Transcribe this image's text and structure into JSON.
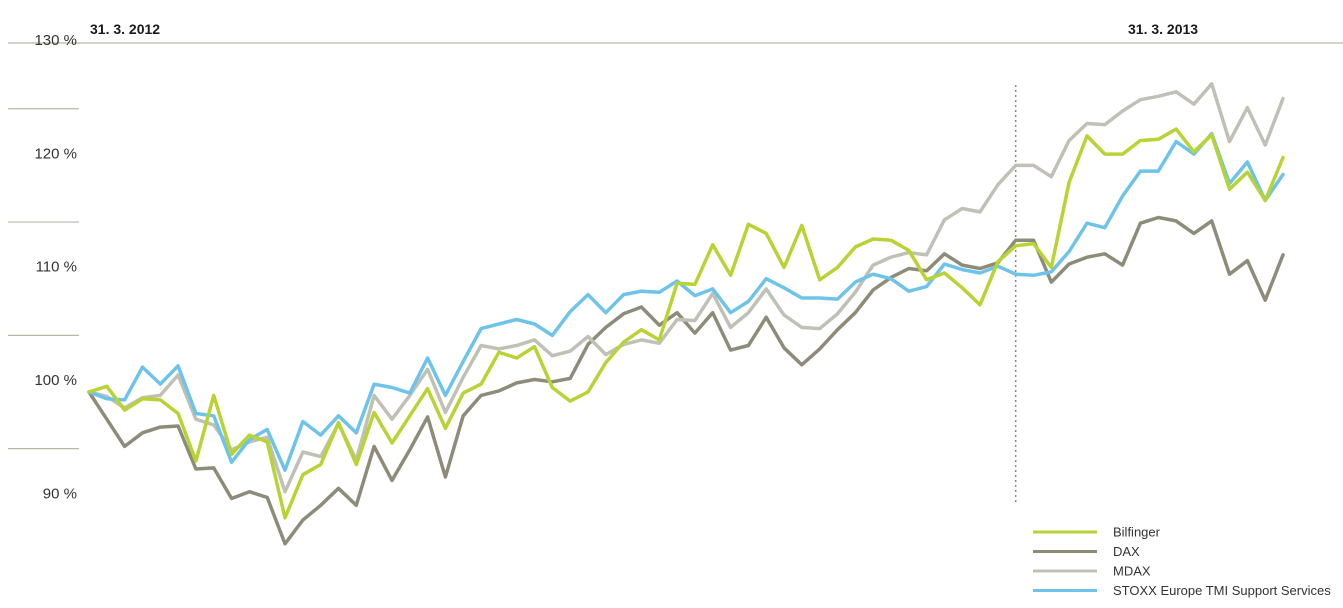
{
  "chart_data": {
    "type": "line",
    "start_label": "31. 3. 2012",
    "end_label": "31. 3. 2013",
    "yticks": [
      "130 %",
      "120 %",
      "110 %",
      "100 %",
      "90 %"
    ],
    "ytick_values": [
      130,
      120,
      110,
      100,
      90
    ],
    "ylim": [
      88,
      132
    ],
    "grid": "short horizontal lines at half-steps between tick labels",
    "marker_index": 52,
    "legend_position": "bottom-right",
    "series": [
      {
        "name": "Bilfinger",
        "color": "#b7d334",
        "values": [
          100,
          100.5,
          98.4,
          99.4,
          99.3,
          98.1,
          93.9,
          99.7,
          94.5,
          96.2,
          95.6,
          88.9,
          92.7,
          93.6,
          97.3,
          93.6,
          98.2,
          95.5,
          97.9,
          100.3,
          96.8,
          99.9,
          100.7,
          103.5,
          103,
          104,
          100.4,
          99.2,
          100,
          102.6,
          104.4,
          105.5,
          104.6,
          109.6,
          109.5,
          113,
          110.3,
          114.8,
          114,
          111,
          114.7,
          109.9,
          111,
          112.8,
          113.5,
          113.4,
          112.5,
          109.9,
          110.5,
          109.2,
          107.7,
          111.5,
          112.9,
          113.1,
          111,
          118.5,
          122.6,
          121,
          121,
          122.2,
          122.3,
          123.2,
          121.2,
          122.7,
          117.9,
          119.4,
          116.9,
          120.7
        ]
      },
      {
        "name": "DAX",
        "color": "#8e8c79",
        "values": [
          100,
          97.6,
          95.2,
          96.4,
          96.9,
          97,
          93.2,
          93.3,
          90.6,
          91.2,
          90.7,
          86.6,
          88.7,
          90,
          91.5,
          90,
          95.2,
          92.2,
          94.9,
          97.8,
          92.5,
          97.9,
          99.7,
          100.1,
          100.8,
          101.1,
          100.9,
          101.2,
          104.2,
          105.7,
          106.9,
          107.5,
          105.9,
          107,
          105.2,
          107,
          103.7,
          104.1,
          106.6,
          103.9,
          102.4,
          103.8,
          105.5,
          107,
          109,
          110.1,
          110.9,
          110.7,
          112.2,
          111.2,
          110.9,
          111.4,
          113.4,
          113.4,
          109.7,
          111.3,
          111.9,
          112.2,
          111.2,
          114.9,
          115.4,
          115.1,
          114,
          115.1,
          110.4,
          111.6,
          108.1,
          112.1
        ]
      },
      {
        "name": "MDAX",
        "color": "#c1c0b6",
        "values": [
          100,
          99.6,
          98.6,
          99.5,
          99.7,
          101.5,
          97.6,
          97.1,
          94.9,
          95.6,
          96,
          91.2,
          94.7,
          94.3,
          97.2,
          94,
          99.7,
          97.6,
          99.7,
          102,
          98.2,
          101.3,
          104.1,
          103.8,
          104.1,
          104.6,
          103.2,
          103.6,
          104.9,
          103.3,
          104.2,
          104.6,
          104.3,
          106.4,
          106.3,
          108.7,
          105.7,
          107,
          109.1,
          106.8,
          105.7,
          105.6,
          106.9,
          108.8,
          111.2,
          111.9,
          112.3,
          112.1,
          115.2,
          116.2,
          115.9,
          118.3,
          120,
          120,
          119,
          122.2,
          123.7,
          123.6,
          124.8,
          125.8,
          126.1,
          126.5,
          125.4,
          127.2,
          122.1,
          125.1,
          121.8,
          125.9
        ]
      },
      {
        "name": "STOXX Europe TMI Support Services",
        "color": "#6ec4e8",
        "values": [
          100,
          99.4,
          99.3,
          102.2,
          100.7,
          102.3,
          98.1,
          97.9,
          93.8,
          95.8,
          96.7,
          93.1,
          97.4,
          96.2,
          97.9,
          96.4,
          100.7,
          100.4,
          99.9,
          103,
          99.7,
          102.7,
          105.6,
          106,
          106.4,
          106,
          105,
          107.1,
          108.6,
          107,
          108.6,
          108.9,
          108.8,
          109.8,
          108.5,
          109.1,
          107,
          108,
          110,
          109.2,
          108.3,
          108.3,
          108.2,
          109.7,
          110.4,
          110,
          108.9,
          109.3,
          111.3,
          110.8,
          110.5,
          111.1,
          110.4,
          110.3,
          110.6,
          112.4,
          114.9,
          114.5,
          117.3,
          119.5,
          119.5,
          122.1,
          121,
          122.8,
          118.4,
          120.3,
          116.9,
          119.2
        ]
      }
    ]
  }
}
